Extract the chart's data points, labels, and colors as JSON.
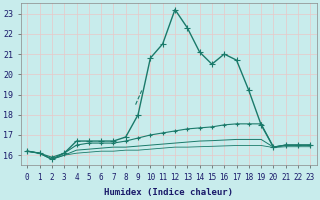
{
  "xlabel": "Humidex (Indice chaleur)",
  "ylabel": "",
  "background_color": "#c8ecec",
  "grid_color": "#b0d8d8",
  "line_color": "#1a7a6a",
  "xlim": [
    -0.5,
    23.5
  ],
  "ylim": [
    15.5,
    23.5
  ],
  "yticks": [
    16,
    17,
    18,
    19,
    20,
    21,
    22,
    23
  ],
  "xticks": [
    0,
    1,
    2,
    3,
    4,
    5,
    6,
    7,
    8,
    9,
    10,
    11,
    12,
    13,
    14,
    15,
    16,
    17,
    18,
    19,
    20,
    21,
    22,
    23
  ],
  "series": [
    {
      "x": [
        0,
        1,
        2,
        3,
        4,
        5,
        6,
        7,
        8,
        9,
        10,
        11,
        12,
        13,
        14,
        15,
        16,
        17,
        18,
        19,
        20,
        21,
        22,
        23
      ],
      "y": [
        16.2,
        16.1,
        15.8,
        16.1,
        16.7,
        16.7,
        16.7,
        16.7,
        16.9,
        18.0,
        20.8,
        21.5,
        23.2,
        22.3,
        21.1,
        20.5,
        21.0,
        20.7,
        19.2,
        17.5,
        16.4,
        16.5,
        16.5,
        16.5
      ],
      "marker": "+",
      "markersize": 4,
      "linewidth": 1.0,
      "linestyle": "-",
      "zorder": 5
    },
    {
      "x": [
        0,
        1,
        2,
        3,
        4,
        5,
        6,
        7,
        8,
        9,
        10,
        11,
        12,
        13,
        14,
        15,
        16,
        17,
        18,
        19,
        20,
        21,
        22,
        23
      ],
      "y": [
        16.2,
        16.1,
        15.9,
        16.1,
        16.5,
        16.6,
        16.6,
        16.6,
        16.7,
        16.85,
        17.0,
        17.1,
        17.2,
        17.3,
        17.35,
        17.4,
        17.5,
        17.55,
        17.55,
        17.55,
        16.4,
        16.5,
        16.5,
        16.5
      ],
      "marker": "+",
      "markersize": 3,
      "linewidth": 0.8,
      "linestyle": "-",
      "zorder": 4
    },
    {
      "x": [
        0,
        1,
        2,
        3,
        4,
        5,
        6,
        7,
        8,
        9,
        10,
        11,
        12,
        13,
        14,
        15,
        16,
        17,
        18,
        19,
        20,
        21,
        22,
        23
      ],
      "y": [
        16.2,
        16.1,
        15.8,
        16.0,
        16.25,
        16.3,
        16.35,
        16.4,
        16.4,
        16.45,
        16.5,
        16.55,
        16.6,
        16.65,
        16.7,
        16.72,
        16.75,
        16.78,
        16.78,
        16.78,
        16.4,
        16.5,
        16.5,
        16.5
      ],
      "marker": null,
      "markersize": 0,
      "linewidth": 0.7,
      "linestyle": "-",
      "zorder": 3
    },
    {
      "x": [
        0,
        1,
        2,
        3,
        4,
        5,
        6,
        7,
        8,
        9,
        10,
        11,
        12,
        13,
        14,
        15,
        16,
        17,
        18,
        19,
        20,
        21,
        22,
        23
      ],
      "y": [
        16.2,
        16.1,
        15.8,
        16.0,
        16.1,
        16.15,
        16.2,
        16.2,
        16.25,
        16.25,
        16.3,
        16.35,
        16.4,
        16.4,
        16.42,
        16.44,
        16.46,
        16.48,
        16.48,
        16.48,
        16.38,
        16.42,
        16.42,
        16.42
      ],
      "marker": null,
      "markersize": 0,
      "linewidth": 0.6,
      "linestyle": "-",
      "zorder": 2
    }
  ],
  "dashed_segment": {
    "x": [
      8.8,
      9.3
    ],
    "y": [
      18.5,
      19.2
    ],
    "linestyle": "--",
    "linewidth": 0.8
  }
}
